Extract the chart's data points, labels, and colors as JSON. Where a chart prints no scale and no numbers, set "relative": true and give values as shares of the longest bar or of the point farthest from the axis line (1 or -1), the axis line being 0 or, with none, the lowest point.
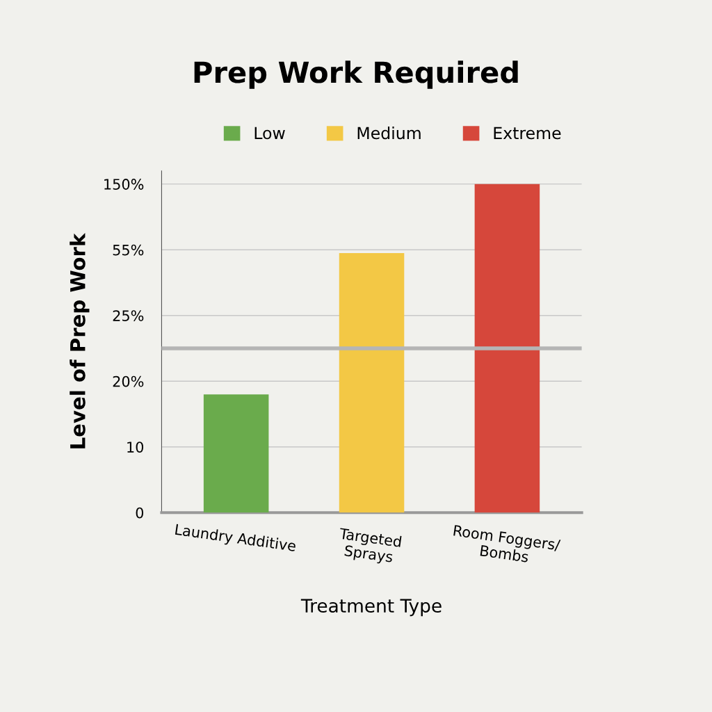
{
  "chart_data": {
    "type": "bar",
    "title": "Prep Work Required",
    "xlabel": "Treatment Type",
    "ylabel": "Level of Prep Work",
    "categories": [
      "Laundry Additive",
      "Targeted\nSprays",
      "Room Foggers/\nBombs"
    ],
    "y_categories": [
      "150%",
      "55%",
      "25%",
      "20%",
      "10",
      "0"
    ],
    "series": [
      {
        "name": "Low",
        "color": "#6aab4c",
        "values": [
          0.36,
          null,
          null
        ]
      },
      {
        "name": "Medium",
        "color": "#f3c845",
        "values": [
          null,
          0.79,
          null
        ]
      },
      {
        "name": "Extreme",
        "color": "#d6473b",
        "values": [
          null,
          null,
          1
        ]
      }
    ],
    "stacked": true,
    "relative": true,
    "ref_lines": [
      {
        "axis": "y",
        "value": 0.5,
        "color": "#b5b5b5"
      }
    ],
    "grid": "y",
    "legend": "top"
  }
}
